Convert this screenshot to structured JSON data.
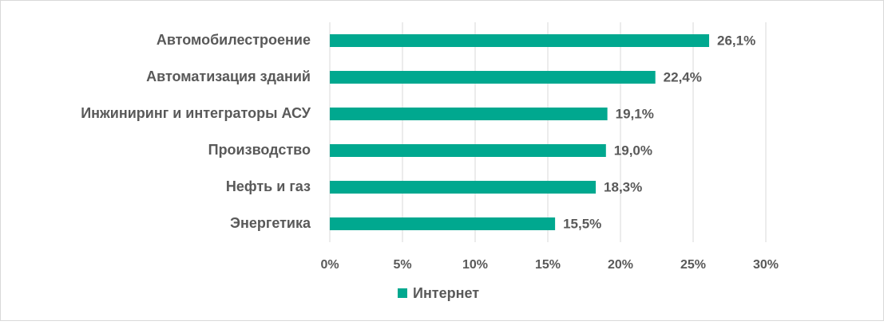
{
  "chart_data": {
    "type": "hbar",
    "categories": [
      "Автомобилестроение",
      "Автоматизация зданий",
      "Инжиниринг и интеграторы АСУ",
      "Производство",
      "Нефть и газ",
      "Энергетика"
    ],
    "series": [
      {
        "name": "Интернет",
        "color": "#00a88f",
        "values": [
          26.1,
          22.4,
          19.1,
          19.0,
          18.3,
          15.5
        ],
        "value_labels": [
          "26,1%",
          "22,4%",
          "19,1%",
          "19,0%",
          "18,3%",
          "15,5%"
        ]
      }
    ],
    "xlim": [
      0,
      30
    ],
    "xticks": [
      {
        "value": 0,
        "label": "0%"
      },
      {
        "value": 5,
        "label": "5%"
      },
      {
        "value": 10,
        "label": "10%"
      },
      {
        "value": 15,
        "label": "15%"
      },
      {
        "value": 20,
        "label": "20%"
      },
      {
        "value": 25,
        "label": "25%"
      },
      {
        "value": 30,
        "label": "30%"
      }
    ],
    "grid": true,
    "legend": "bottom"
  }
}
